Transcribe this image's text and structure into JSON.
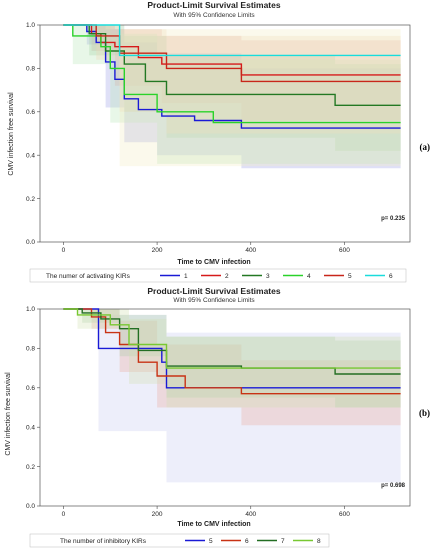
{
  "chart_data": [
    {
      "type": "line",
      "panel_label": "(a)",
      "title": "Product-Limit Survival Estimates",
      "subtitle": "With 95% Confidence Limits",
      "xlabel": "Time to CMV infection",
      "ylabel": "CMV infection free survival",
      "xlim": [
        -50,
        740
      ],
      "ylim": [
        0,
        1.0
      ],
      "xticks": [
        0,
        200,
        400,
        600
      ],
      "yticks": [
        0.0,
        0.2,
        0.4,
        0.6,
        0.8,
        1.0
      ],
      "annotation": "p= 0.235",
      "legend_title": "The numer of activating KIRs",
      "series": [
        {
          "name": "1",
          "color": "#1a1ad6",
          "steps": [
            [
              0,
              1.0
            ],
            [
              50,
              0.97
            ],
            [
              70,
              0.92
            ],
            [
              90,
              0.83
            ],
            [
              110,
              0.75
            ],
            [
              130,
              0.66
            ],
            [
              160,
              0.61
            ],
            [
              210,
              0.58
            ],
            [
              280,
              0.56
            ],
            [
              380,
              0.525
            ],
            [
              720,
              0.525
            ]
          ],
          "band": {
            "color": "#9aa0e6",
            "pts": [
              [
                0,
                1.0,
                1.0
              ],
              [
                50,
                0.91,
                1.0
              ],
              [
                90,
                0.62,
                0.98
              ],
              [
                130,
                0.46,
                0.92
              ],
              [
                200,
                0.4,
                0.87
              ],
              [
                380,
                0.34,
                0.8
              ],
              [
                720,
                0.34,
                0.8
              ]
            ]
          }
        },
        {
          "name": "2",
          "color": "#d61a1a",
          "steps": [
            [
              0,
              1.0
            ],
            [
              60,
              0.96
            ],
            [
              80,
              0.92
            ],
            [
              110,
              0.9
            ],
            [
              160,
              0.85
            ],
            [
              210,
              0.82
            ],
            [
              380,
              0.77
            ],
            [
              720,
              0.77
            ]
          ],
          "band": {
            "color": "#e6a0a0",
            "pts": [
              [
                0,
                1.0,
                1.0
              ],
              [
                60,
                0.88,
                1.0
              ],
              [
                110,
                0.72,
                0.98
              ],
              [
                210,
                0.64,
                0.95
              ],
              [
                380,
                0.56,
                0.93
              ],
              [
                720,
                0.56,
                0.93
              ]
            ]
          }
        },
        {
          "name": "3",
          "color": "#237823",
          "steps": [
            [
              0,
              1.0
            ],
            [
              55,
              0.96
            ],
            [
              90,
              0.88
            ],
            [
              130,
              0.82
            ],
            [
              175,
              0.74
            ],
            [
              220,
              0.68
            ],
            [
              380,
              0.68
            ],
            [
              580,
              0.63
            ],
            [
              720,
              0.63
            ]
          ],
          "band": {
            "color": "#9cc89c",
            "pts": [
              [
                0,
                1.0,
                1.0
              ],
              [
                55,
                0.86,
                1.0
              ],
              [
                130,
                0.6,
                0.95
              ],
              [
                220,
                0.48,
                0.86
              ],
              [
                580,
                0.42,
                0.82
              ],
              [
                720,
                0.42,
                0.82
              ]
            ]
          }
        },
        {
          "name": "4",
          "color": "#2ad22a",
          "steps": [
            [
              0,
              1.0
            ],
            [
              20,
              0.95
            ],
            [
              80,
              0.9
            ],
            [
              100,
              0.8
            ],
            [
              130,
              0.68
            ],
            [
              200,
              0.6
            ],
            [
              320,
              0.55
            ],
            [
              720,
              0.55
            ]
          ],
          "band": {
            "color": "#b6e6b6",
            "pts": [
              [
                0,
                1.0,
                1.0
              ],
              [
                20,
                0.82,
                1.0
              ],
              [
                100,
                0.55,
                0.96
              ],
              [
                200,
                0.36,
                0.84
              ],
              [
                720,
                0.32,
                0.8
              ]
            ]
          }
        },
        {
          "name": "5",
          "color": "#c8261a",
          "steps": [
            [
              0,
              1.0
            ],
            [
              70,
              0.95
            ],
            [
              120,
              0.87
            ],
            [
              220,
              0.8
            ],
            [
              380,
              0.74
            ],
            [
              720,
              0.74
            ]
          ],
          "band": {
            "color": "#f0d8b8",
            "pts": [
              [
                0,
                1.0,
                1.0
              ],
              [
                70,
                0.84,
                1.0
              ],
              [
                120,
                0.6,
                0.98
              ],
              [
                220,
                0.5,
                0.95
              ],
              [
                720,
                0.42,
                0.94
              ]
            ]
          }
        },
        {
          "name": "6",
          "color": "#1adcdc",
          "steps": [
            [
              0,
              1.0
            ],
            [
              120,
              0.86
            ],
            [
              720,
              0.86
            ]
          ],
          "band": {
            "color": "#f3ecc4",
            "pts": [
              [
                0,
                1.0,
                1.0
              ],
              [
                120,
                0.35,
                0.98
              ],
              [
                720,
                0.35,
                0.98
              ]
            ]
          }
        }
      ]
    },
    {
      "type": "line",
      "panel_label": "(b)",
      "title": "Product-Limit Survival Estimates",
      "subtitle": "With 95% Confidence Limits",
      "xlabel": "Time to CMV infection",
      "ylabel": "CMV infection free survival",
      "xlim": [
        -50,
        740
      ],
      "ylim": [
        0,
        1.0
      ],
      "xticks": [
        0,
        200,
        400,
        600
      ],
      "yticks": [
        0.0,
        0.2,
        0.4,
        0.6,
        0.8,
        1.0
      ],
      "annotation": "p= 0.698",
      "legend_title": "The number of inhibitory KIRs",
      "series": [
        {
          "name": "5",
          "color": "#1a1ad6",
          "steps": [
            [
              0,
              1.0
            ],
            [
              75,
              0.8
            ],
            [
              130,
              0.8
            ],
            [
              210,
              0.73
            ],
            [
              220,
              0.6
            ],
            [
              720,
              0.6
            ]
          ],
          "band": {
            "color": "#c8caf0",
            "pts": [
              [
                0,
                1.0,
                1.0
              ],
              [
                75,
                0.38,
                0.97
              ],
              [
                220,
                0.12,
                0.88
              ],
              [
                720,
                0.12,
                0.88
              ]
            ]
          }
        },
        {
          "name": "6",
          "color": "#c83214",
          "steps": [
            [
              0,
              1.0
            ],
            [
              60,
              0.96
            ],
            [
              90,
              0.88
            ],
            [
              120,
              0.82
            ],
            [
              160,
              0.73
            ],
            [
              200,
              0.66
            ],
            [
              260,
              0.6
            ],
            [
              380,
              0.57
            ],
            [
              720,
              0.57
            ]
          ],
          "band": {
            "color": "#e8aaa0",
            "pts": [
              [
                0,
                1.0,
                1.0
              ],
              [
                60,
                0.9,
                1.0
              ],
              [
                120,
                0.68,
                0.94
              ],
              [
                200,
                0.5,
                0.82
              ],
              [
                380,
                0.41,
                0.74
              ],
              [
                720,
                0.41,
                0.74
              ]
            ]
          }
        },
        {
          "name": "7",
          "color": "#236e23",
          "steps": [
            [
              0,
              1.0
            ],
            [
              40,
              0.98
            ],
            [
              80,
              0.95
            ],
            [
              120,
              0.9
            ],
            [
              160,
              0.79
            ],
            [
              220,
              0.71
            ],
            [
              380,
              0.7
            ],
            [
              580,
              0.67
            ],
            [
              720,
              0.67
            ]
          ],
          "band": {
            "color": "#a8cca8",
            "pts": [
              [
                0,
                1.0,
                1.0
              ],
              [
                40,
                0.93,
                1.0
              ],
              [
                120,
                0.76,
                0.97
              ],
              [
                220,
                0.55,
                0.86
              ],
              [
                580,
                0.5,
                0.84
              ],
              [
                720,
                0.5,
                0.84
              ]
            ]
          }
        },
        {
          "name": "8",
          "color": "#78c832",
          "steps": [
            [
              0,
              1.0
            ],
            [
              30,
              0.97
            ],
            [
              100,
              0.92
            ],
            [
              140,
              0.82
            ],
            [
              220,
              0.7
            ],
            [
              720,
              0.7
            ]
          ],
          "band": {
            "color": "#d0e0b0",
            "pts": [
              [
                0,
                1.0,
                1.0
              ],
              [
                30,
                0.9,
                1.0
              ],
              [
                140,
                0.62,
                0.95
              ],
              [
                220,
                0.5,
                0.86
              ],
              [
                720,
                0.5,
                0.86
              ]
            ]
          }
        }
      ]
    }
  ]
}
